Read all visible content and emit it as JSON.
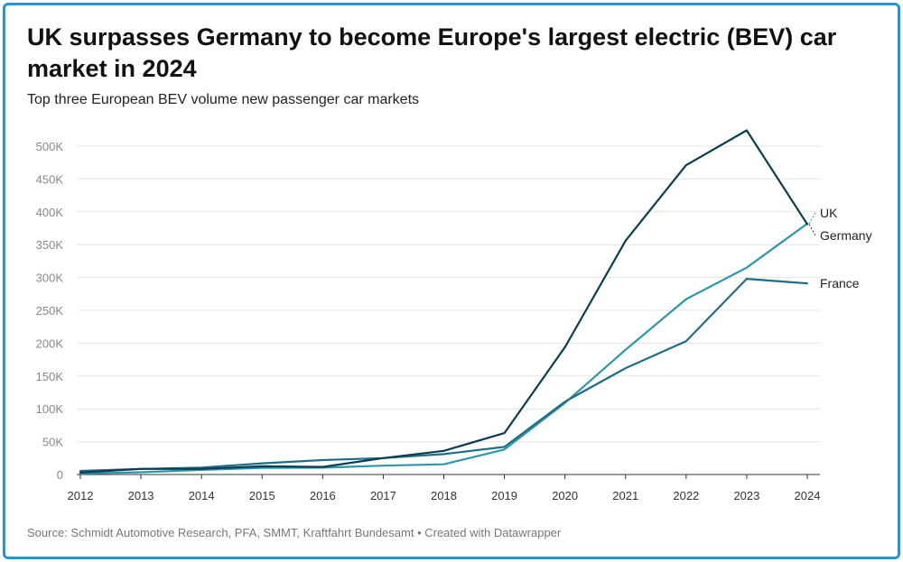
{
  "chart_data": {
    "type": "line",
    "title": "UK surpasses Germany to become Europe's largest electric (BEV) car market in 2024",
    "subtitle": "Top three European BEV volume new passenger car markets",
    "source": "Source: Schmidt Automotive Research, PFA, SMMT, Kraftfahrt Bundesamt • Created with Datawrapper",
    "x": [
      2012,
      2013,
      2014,
      2015,
      2016,
      2017,
      2018,
      2019,
      2020,
      2021,
      2022,
      2023,
      2024
    ],
    "ylim": [
      0,
      500000
    ],
    "yticks": [
      0,
      50000,
      100000,
      150000,
      200000,
      250000,
      300000,
      350000,
      400000,
      450000,
      500000
    ],
    "ytick_labels": [
      "0",
      "50K",
      "100K",
      "150K",
      "200K",
      "250K",
      "300K",
      "350K",
      "400K",
      "450K",
      "500K"
    ],
    "grid": true,
    "legend": "direct labels at line ends",
    "series": [
      {
        "name": "Germany",
        "color": "#0b3d52",
        "values": [
          3000,
          8500,
          8500,
          12500,
          11500,
          25000,
          36000,
          63000,
          194000,
          356000,
          471000,
          524000,
          381000
        ]
      },
      {
        "name": "UK",
        "color": "#2a97ab",
        "values": [
          1500,
          3500,
          7000,
          10000,
          10500,
          13500,
          15500,
          38000,
          109000,
          190000,
          267000,
          315000,
          382000
        ]
      },
      {
        "name": "France",
        "color": "#1f6e86",
        "values": [
          5500,
          8500,
          10500,
          17000,
          22000,
          25000,
          31000,
          42000,
          111000,
          162000,
          203000,
          298000,
          291000
        ]
      }
    ]
  }
}
